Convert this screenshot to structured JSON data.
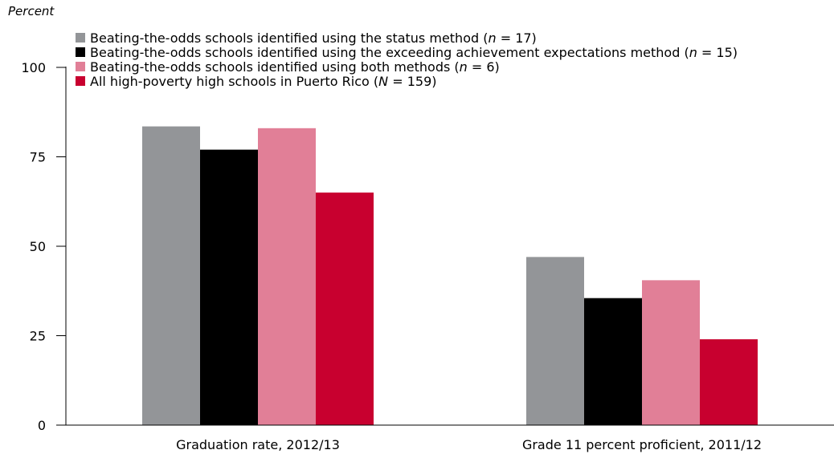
{
  "chart_data": {
    "type": "bar",
    "ylabel": "Percent",
    "ylim": [
      0,
      100
    ],
    "yticks": [
      0,
      25,
      50,
      75,
      100
    ],
    "categories": [
      "Graduation rate, 2012/13",
      "Grade 11 percent proficient, 2011/12"
    ],
    "legend_position": "top-left",
    "series": [
      {
        "name": "Beating-the-odds schools identified using the status method (n = 17)",
        "name_prefix": "Beating-the-odds schools identified using the status method (",
        "name_var": "n",
        "name_suffix": " = 17)",
        "color": "#939598",
        "values": [
          83.5,
          47
        ]
      },
      {
        "name": "Beating-the-odds schools identified using the exceeding achievement expectations method (n = 15)",
        "name_prefix": "Beating-the-odds schools identified using the exceeding achievement expectations method (",
        "name_var": "n",
        "name_suffix": " = 15)",
        "color": "#000000",
        "values": [
          77,
          35.5
        ]
      },
      {
        "name": "Beating-the-odds schools identified using both methods (n = 6)",
        "name_prefix": "Beating-the-odds schools identified using both methods (",
        "name_var": "n",
        "name_suffix": " = 6)",
        "color": "#e17f97",
        "values": [
          83,
          40.5
        ]
      },
      {
        "name": "All high-poverty high schools in Puerto Rico (N = 159)",
        "name_prefix": "All high-poverty high schools in Puerto Rico (",
        "name_var": "N",
        "name_suffix": " = 159)",
        "color": "#c8002f",
        "values": [
          65,
          24
        ]
      }
    ]
  }
}
